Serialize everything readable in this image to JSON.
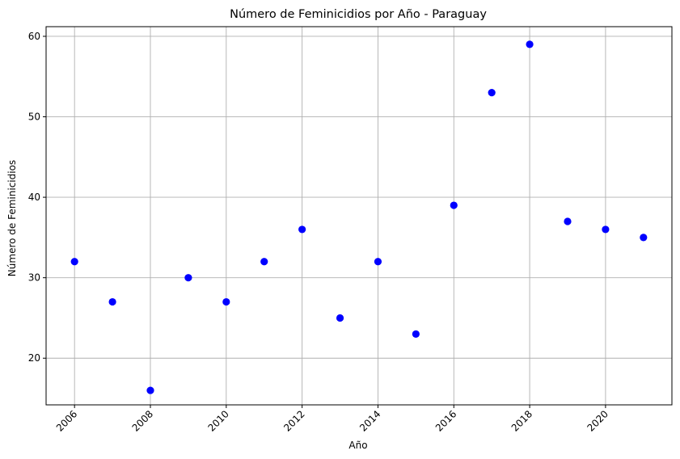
{
  "chart_data": {
    "type": "scatter",
    "title": "Número de Feminicidios por Año - Paraguay",
    "xlabel": "Año",
    "ylabel": "Número de Feminicidios",
    "x": [
      2006,
      2007,
      2008,
      2009,
      2010,
      2011,
      2012,
      2013,
      2014,
      2015,
      2016,
      2017,
      2018,
      2019,
      2020,
      2021
    ],
    "y": [
      32,
      27,
      16,
      30,
      27,
      32,
      36,
      25,
      32,
      23,
      39,
      53,
      59,
      37,
      36,
      35
    ],
    "xlim": [
      2005.25,
      2021.75
    ],
    "ylim": [
      14.2,
      61.2
    ],
    "xticks": [
      2006,
      2008,
      2010,
      2012,
      2014,
      2016,
      2018,
      2020
    ],
    "yticks": [
      20,
      30,
      40,
      50,
      60
    ],
    "grid": true,
    "marker_color": "#0000ff",
    "x_tick_rotation_deg": 45
  }
}
